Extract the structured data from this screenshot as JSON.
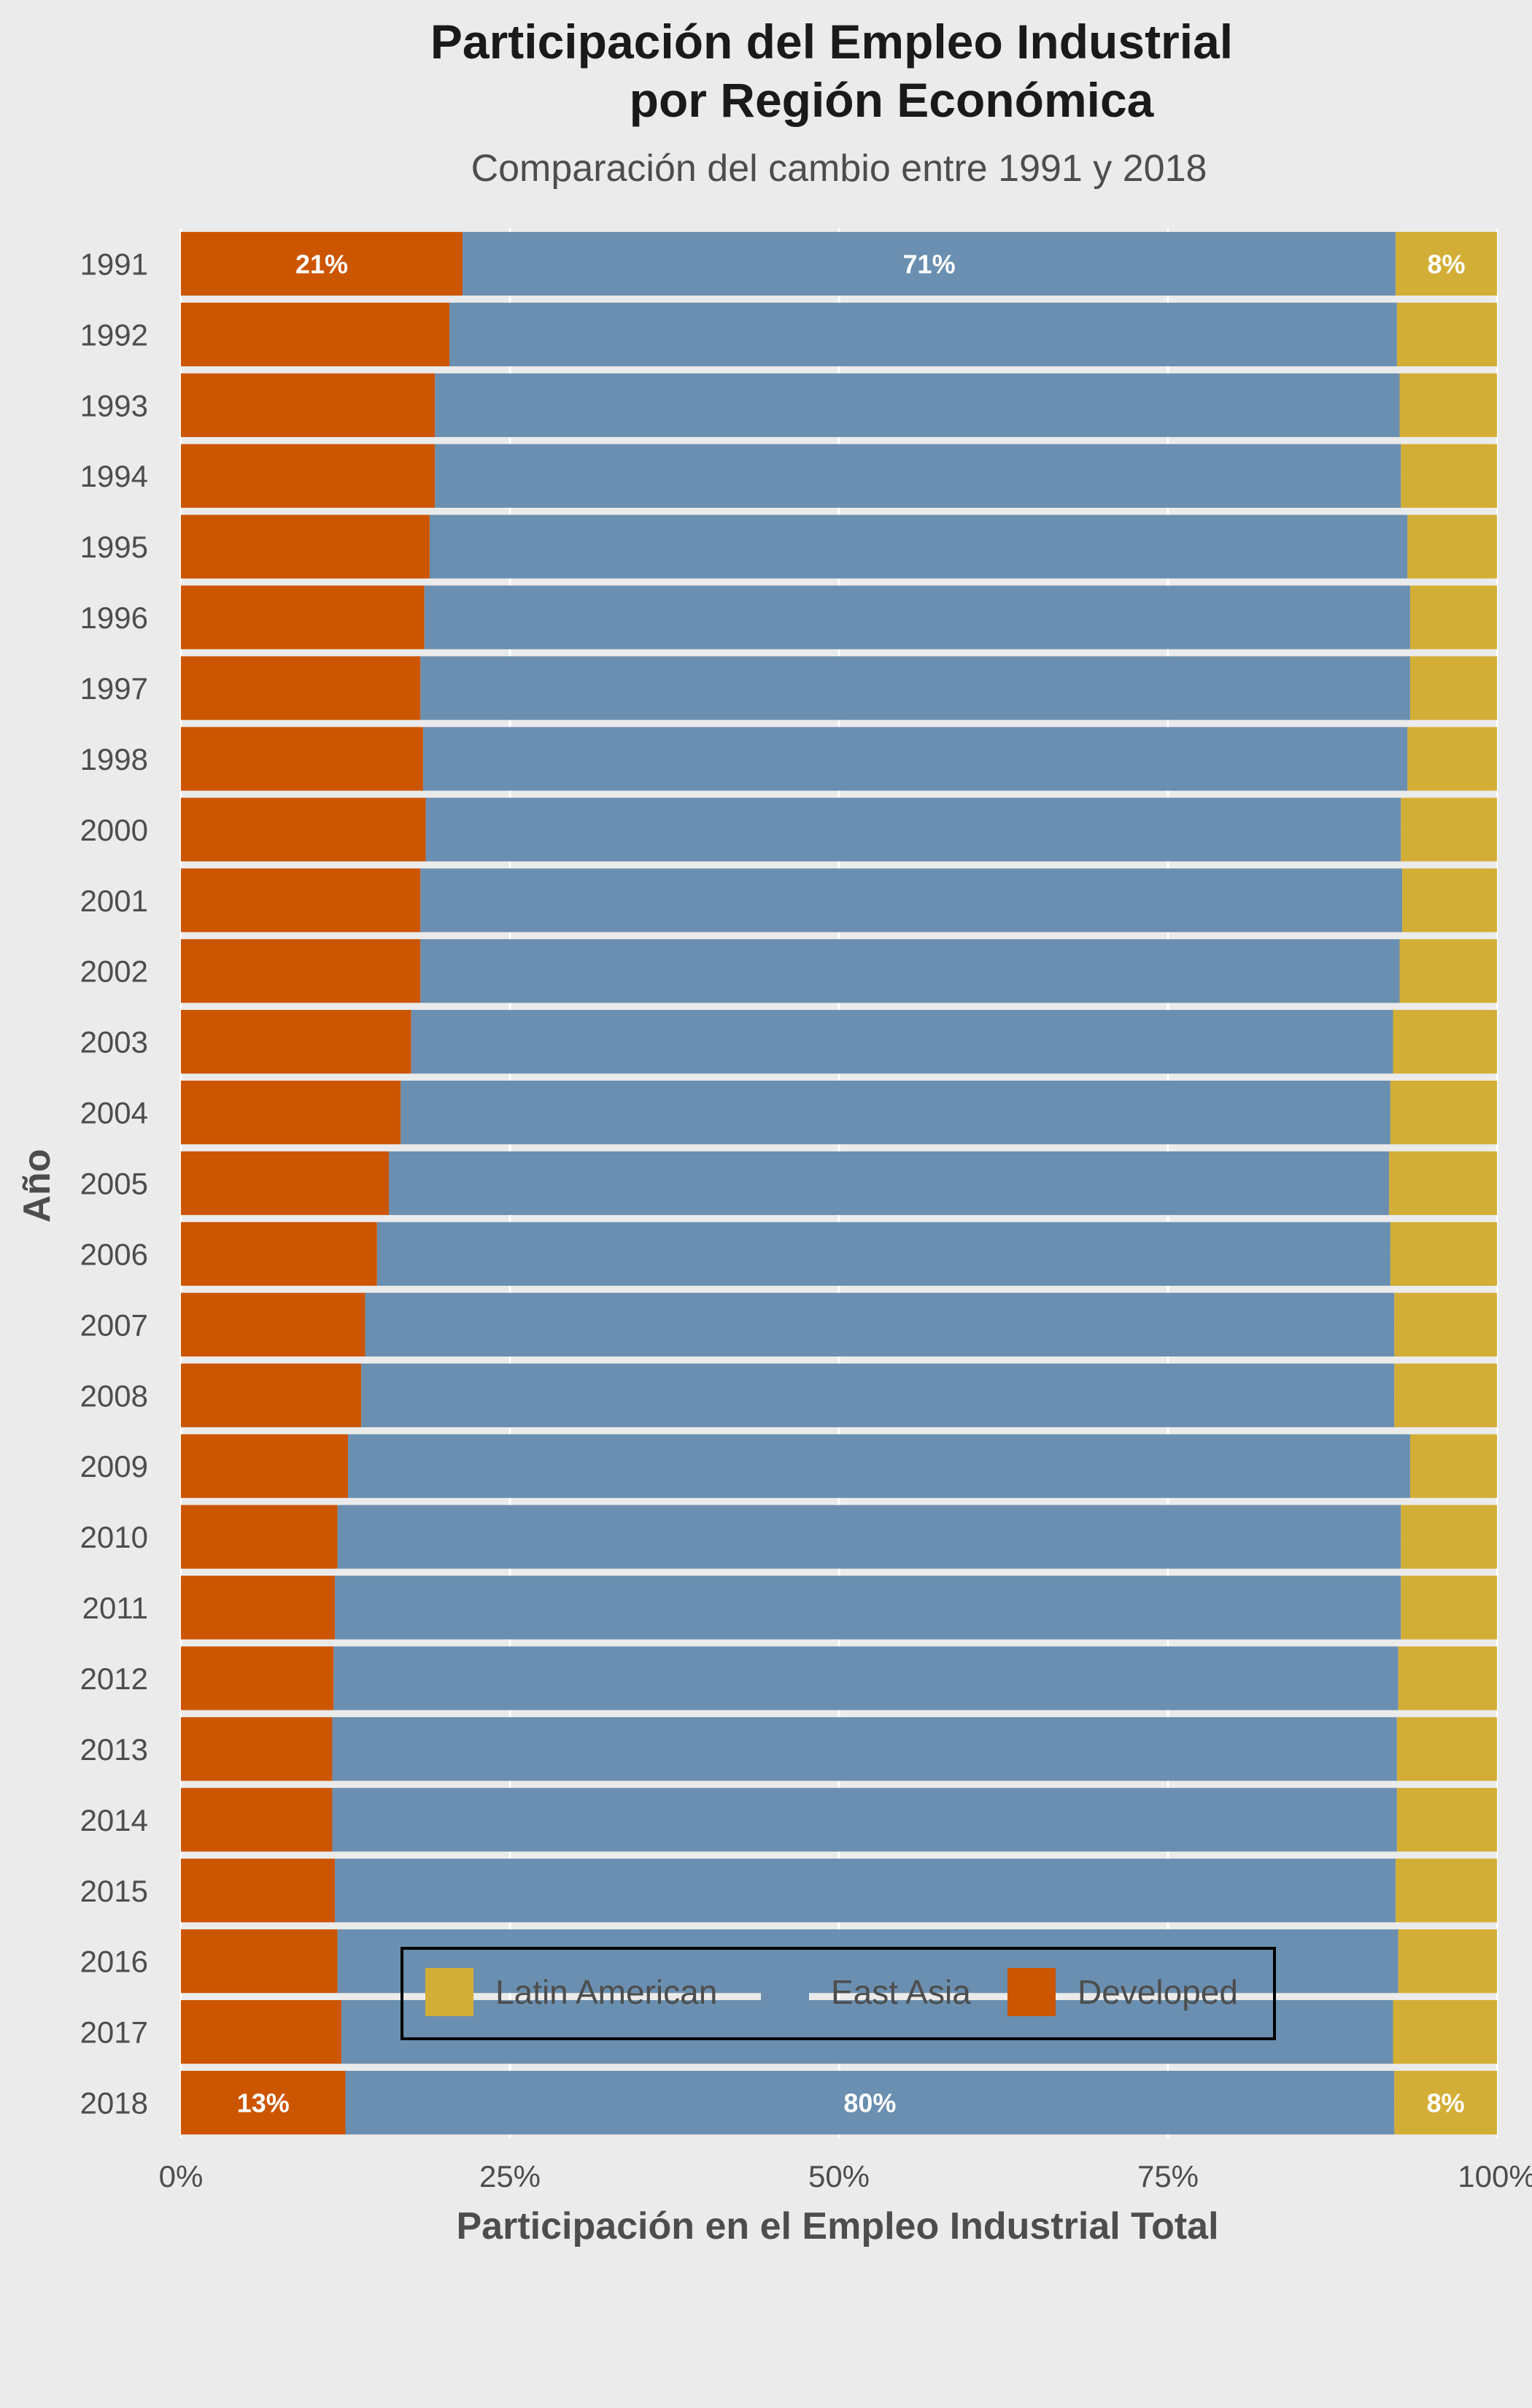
{
  "colors": {
    "background": "#ebebeb",
    "Latin American": "#d3ae36",
    "East Asia": "#6a8fb0",
    "Developed": "#cc5500",
    "grid": "#ffffff"
  },
  "chart_data": {
    "type": "bar",
    "orientation": "horizontal",
    "stacked": "percent",
    "title": [
      "Participación del Empleo Industrial",
      "por Región Económica"
    ],
    "subtitle": "Comparación del cambio entre 1991 y 2018",
    "xlabel": "Participación en el Empleo Industrial Total",
    "ylabel": "Año",
    "xlim": [
      0,
      100
    ],
    "x_ticks": [
      "0%",
      "25%",
      "50%",
      "75%",
      "100%"
    ],
    "grid": true,
    "legend_position": "bottom",
    "legend_order": [
      "Latin American",
      "East Asia",
      "Developed"
    ],
    "categories": [
      "1991",
      "1992",
      "1993",
      "1994",
      "1995",
      "1996",
      "1997",
      "1998",
      "2000",
      "2001",
      "2002",
      "2003",
      "2004",
      "2005",
      "2006",
      "2007",
      "2008",
      "2009",
      "2010",
      "2011",
      "2012",
      "2013",
      "2014",
      "2015",
      "2016",
      "2017",
      "2018"
    ],
    "series": [
      {
        "name": "Developed",
        "values": [
          21.4,
          20.4,
          19.3,
          19.3,
          18.9,
          18.5,
          18.2,
          18.4,
          18.6,
          18.2,
          18.2,
          17.5,
          16.7,
          15.8,
          14.9,
          14.0,
          13.7,
          12.7,
          11.9,
          11.7,
          11.6,
          11.5,
          11.5,
          11.7,
          11.9,
          12.2,
          12.5
        ]
      },
      {
        "name": "East Asia",
        "values": [
          70.9,
          72.0,
          73.3,
          73.4,
          74.3,
          74.9,
          75.2,
          74.8,
          74.1,
          74.6,
          74.4,
          74.6,
          75.2,
          76.0,
          77.0,
          78.2,
          78.5,
          80.7,
          80.8,
          81.0,
          80.9,
          80.9,
          80.9,
          80.6,
          80.6,
          79.9,
          79.7
        ]
      },
      {
        "name": "Latin American",
        "values": [
          7.7,
          7.6,
          7.4,
          7.3,
          6.8,
          6.6,
          6.6,
          6.8,
          7.3,
          7.2,
          7.4,
          7.9,
          8.1,
          8.2,
          8.1,
          7.8,
          7.8,
          6.6,
          7.3,
          7.3,
          7.5,
          7.6,
          7.6,
          7.7,
          7.5,
          7.9,
          7.8
        ]
      }
    ],
    "annotations": [
      {
        "category": "1991",
        "series": "Developed",
        "text": "21%"
      },
      {
        "category": "1991",
        "series": "East Asia",
        "text": "71%"
      },
      {
        "category": "1991",
        "series": "Latin American",
        "text": "8%"
      },
      {
        "category": "2018",
        "series": "Developed",
        "text": "13%"
      },
      {
        "category": "2018",
        "series": "East Asia",
        "text": "80%"
      },
      {
        "category": "2018",
        "series": "Latin American",
        "text": "8%"
      }
    ]
  }
}
